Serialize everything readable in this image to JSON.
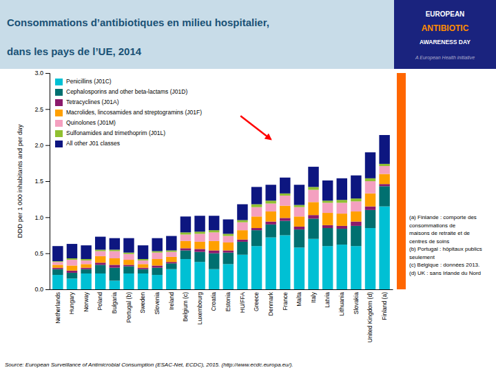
{
  "chart_data": {
    "type": "bar",
    "stacked": true,
    "title": [
      "Consommations d’antibiotiques en milieu hospitalier,",
      "dans les pays de l’UE, 2014"
    ],
    "y_label": "DDD per 1 000 inhabitants and per day",
    "categories": [
      "Netherlands",
      "Hungary",
      "Norway",
      "Poland",
      "Bulgaria",
      "Portugal (b)",
      "Sweden",
      "Slovenia",
      "Ireland",
      "Belgium (c)",
      "Luxembourg",
      "Croatia",
      "Estonia",
      "HU/FFA",
      "Greece",
      "Denmark",
      "France",
      "Malta",
      "Italy",
      "Latvia",
      "Lithuania",
      "Slovakia",
      "United Kingdom (d)",
      "Finland (a)"
    ],
    "series": [
      {
        "name": "Penicillins (J01C)",
        "color": "#00c0d4",
        "values": [
          0.2,
          0.15,
          0.22,
          0.22,
          0.12,
          0.22,
          0.22,
          0.2,
          0.28,
          0.42,
          0.38,
          0.28,
          0.35,
          0.48,
          0.6,
          0.72,
          0.75,
          0.58,
          0.7,
          0.6,
          0.62,
          0.6,
          0.85,
          1.15
        ]
      },
      {
        "name": "Cephalosporins and other beta-lactams (J01D)",
        "color": "#007070",
        "values": [
          0.08,
          0.08,
          0.06,
          0.12,
          0.18,
          0.1,
          0.06,
          0.1,
          0.08,
          0.12,
          0.14,
          0.22,
          0.16,
          0.18,
          0.22,
          0.18,
          0.2,
          0.25,
          0.28,
          0.25,
          0.22,
          0.28,
          0.25,
          0.28
        ]
      },
      {
        "name": "Tetracyclines (J01A)",
        "color": "#8b1a6b",
        "values": [
          0.02,
          0.03,
          0.02,
          0.03,
          0.04,
          0.02,
          0.02,
          0.03,
          0.02,
          0.03,
          0.04,
          0.04,
          0.03,
          0.03,
          0.03,
          0.04,
          0.04,
          0.04,
          0.05,
          0.04,
          0.04,
          0.06,
          0.05,
          0.03
        ]
      },
      {
        "name": "Macrolides, lincosamides and streptogramins (J01F)",
        "color": "#ffa000",
        "values": [
          0.04,
          0.07,
          0.05,
          0.09,
          0.09,
          0.07,
          0.05,
          0.09,
          0.07,
          0.1,
          0.1,
          0.13,
          0.11,
          0.13,
          0.16,
          0.14,
          0.17,
          0.14,
          0.18,
          0.17,
          0.17,
          0.14,
          0.18,
          0.14
        ]
      },
      {
        "name": "Quinolones (J01M)",
        "color": "#f4a0c0",
        "values": [
          0.04,
          0.08,
          0.05,
          0.07,
          0.1,
          0.08,
          0.05,
          0.09,
          0.07,
          0.09,
          0.11,
          0.12,
          0.09,
          0.11,
          0.13,
          0.11,
          0.14,
          0.13,
          0.17,
          0.14,
          0.15,
          0.14,
          0.17,
          0.11
        ]
      },
      {
        "name": "Sulfonamides and trimethoprim (J01L)",
        "color": "#90c030",
        "values": [
          0.01,
          0.02,
          0.02,
          0.02,
          0.02,
          0.02,
          0.02,
          0.02,
          0.02,
          0.03,
          0.03,
          0.03,
          0.03,
          0.03,
          0.04,
          0.04,
          0.03,
          0.03,
          0.04,
          0.03,
          0.04,
          0.04,
          0.04,
          0.03
        ]
      },
      {
        "name": "All other J01 classes",
        "color": "#0d1680",
        "values": [
          0.21,
          0.2,
          0.19,
          0.18,
          0.16,
          0.2,
          0.19,
          0.18,
          0.2,
          0.22,
          0.22,
          0.2,
          0.2,
          0.22,
          0.24,
          0.22,
          0.22,
          0.28,
          0.28,
          0.28,
          0.3,
          0.32,
          0.36,
          0.4
        ]
      }
    ],
    "ylim": [
      0,
      3
    ],
    "yticks": [
      {
        "value": 0,
        "label": "0.0"
      },
      0.5,
      {
        "value": 1,
        "label": "1.0"
      },
      1.5,
      {
        "value": 2,
        "label": "2.0"
      },
      2.5,
      {
        "value": 3,
        "label": "3.0"
      }
    ],
    "grid": false,
    "legend": "upper left",
    "annotations": [
      {
        "type": "arrow",
        "category": "Denmark",
        "y": 2.08,
        "color": "red"
      }
    ],
    "logo": [
      "EUROPEAN",
      "ANTIBIOTIC",
      "AWARENESS DAY",
      "A European Health initiative"
    ],
    "footnotes": [
      "(a) Finlande : comporte des",
      "consommations de",
      "maisons de retraite et de",
      "centres de soins",
      "(b) Portugal : hôpitaux publics",
      "seulement",
      "(c) Belgique : données 2013.",
      "(d) UK : sans Irlande du Nord"
    ],
    "source": "Source: European Surveillance of Antimicrobial Consumption (ESAC-Net, ECDC), 2015. (http://www.ecdc.europa.eu/)."
  }
}
